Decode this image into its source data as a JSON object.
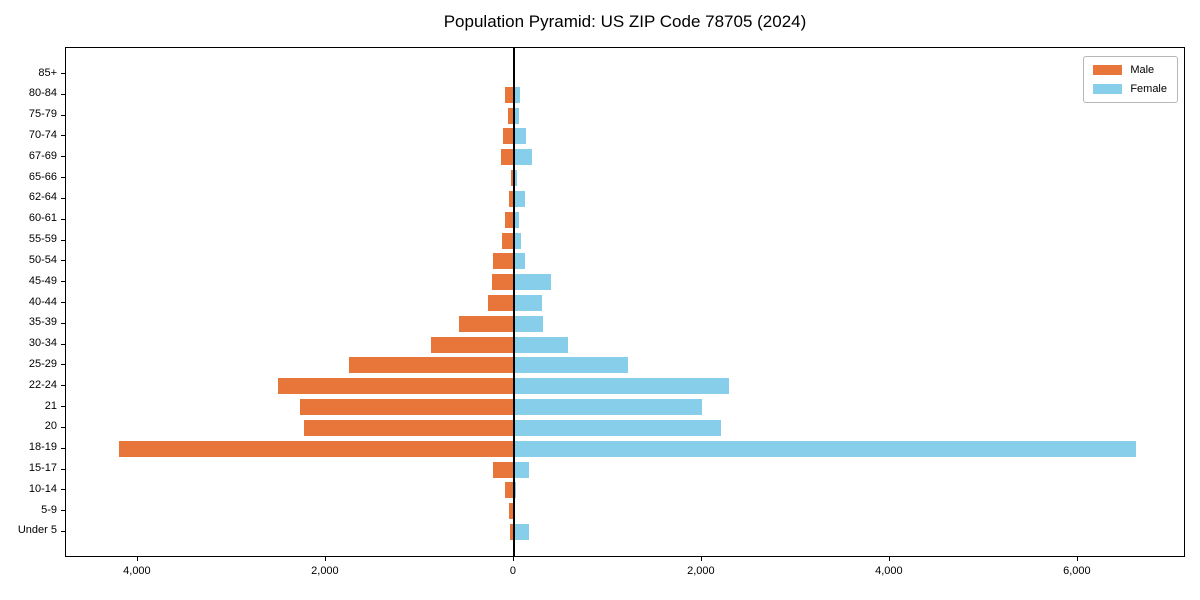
{
  "chart_data": {
    "type": "bar",
    "variant": "population-pyramid",
    "title": "Population Pyramid: US ZIP Code 78705 (2024)",
    "categories": [
      "85+",
      "80-84",
      "75-79",
      "70-74",
      "67-69",
      "65-66",
      "62-64",
      "60-61",
      "55-59",
      "50-54",
      "45-49",
      "40-44",
      "35-39",
      "30-34",
      "25-29",
      "22-24",
      "21",
      "20",
      "18-19",
      "15-17",
      "10-14",
      "5-9",
      "Under 5"
    ],
    "series": [
      {
        "name": "Male",
        "side": "left",
        "color": "#e8763b",
        "values": [
          0,
          100,
          60,
          120,
          140,
          30,
          50,
          95,
          130,
          220,
          235,
          275,
          585,
          880,
          1750,
          2505,
          2280,
          2235,
          4200,
          225,
          90,
          55,
          40
        ]
      },
      {
        "name": "Female",
        "side": "right",
        "color": "#87ceeb",
        "values": [
          0,
          65,
          50,
          125,
          195,
          30,
          115,
          50,
          75,
          115,
          390,
          300,
          310,
          575,
          1210,
          2290,
          2000,
          2205,
          6620,
          165,
          20,
          10,
          160
        ]
      }
    ],
    "xlabel": "",
    "ylabel": "",
    "xlim": [
      -4765,
      7150
    ],
    "xticks": {
      "values": [
        -4000,
        -2000,
        0,
        2000,
        4000,
        6000
      ],
      "labels": [
        "4,000",
        "2,000",
        "0",
        "2,000",
        "4,000",
        "6,000"
      ]
    },
    "grid": false,
    "legend_position": "upper-right",
    "zero_line_color": "#000000",
    "axis_color": "#000000",
    "background": "#ffffff"
  }
}
